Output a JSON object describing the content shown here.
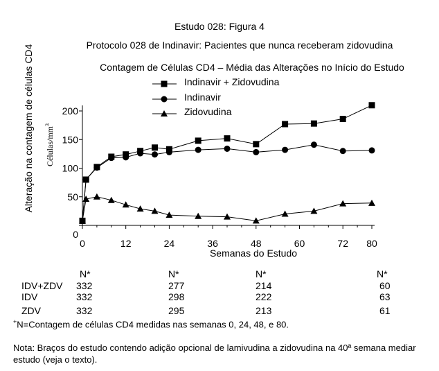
{
  "header": {
    "line1": "Estudo 028: Figura 4",
    "line2": "Protocolo 028 de Indinavir: Pacientes que nunca receberam zidovudina",
    "line3": "Contagem de Células CD4 – Média das Alterações no Início do Estudo"
  },
  "chart_data": {
    "type": "line",
    "xlabel": "Semanas do Estudo",
    "ylabel": "Alteração na contagem de células CD4",
    "yunit": "Células/mm",
    "yunit_sup": "3",
    "xlim": [
      0,
      80
    ],
    "ylim": [
      0,
      200
    ],
    "xticks": [
      0,
      12,
      24,
      36,
      48,
      60,
      72,
      80
    ],
    "yticks": [
      0,
      50,
      100,
      150,
      200
    ],
    "legend_position": "top-center",
    "series": [
      {
        "name": "Indinavir + Zidovudina",
        "marker": "square",
        "x": [
          0,
          1,
          4,
          8,
          12,
          16,
          20,
          24,
          32,
          40,
          48,
          56,
          64,
          72,
          80
        ],
        "y": [
          8,
          80,
          102,
          120,
          124,
          130,
          136,
          133,
          148,
          152,
          142,
          177,
          178,
          186,
          210
        ]
      },
      {
        "name": "Indinavir",
        "marker": "circle",
        "x": [
          0,
          1,
          4,
          8,
          12,
          16,
          20,
          24,
          32,
          40,
          48,
          56,
          64,
          72,
          80
        ],
        "y": [
          8,
          80,
          101,
          118,
          119,
          126,
          124,
          128,
          132,
          134,
          128,
          132,
          141,
          130,
          131
        ]
      },
      {
        "name": "Zidovudina",
        "marker": "triangle",
        "x": [
          0,
          1,
          4,
          8,
          12,
          16,
          20,
          24,
          32,
          40,
          48,
          56,
          64,
          72,
          80
        ],
        "y": [
          8,
          46,
          50,
          44,
          36,
          29,
          25,
          18,
          16,
          15,
          8,
          20,
          25,
          38,
          39
        ]
      }
    ]
  },
  "table": {
    "n_header": "N*",
    "rows": [
      {
        "label": "IDV+ZDV",
        "values": [
          "332",
          "277",
          "214",
          "60"
        ]
      },
      {
        "label": "IDV",
        "values": [
          "332",
          "298",
          "222",
          "63"
        ]
      },
      {
        "label": "ZDV",
        "values": [
          "332",
          "295",
          "213",
          "61"
        ]
      }
    ]
  },
  "footnote": {
    "mark": "+",
    "text": "N=Contagem de células CD4 medidas nas semanas 0, 24, 48, e 80."
  },
  "note": "Nota: Braços do estudo contendo adição opcional de lamivudina a zidovudina na 40ª semana mediar estudo (veja o texto)."
}
